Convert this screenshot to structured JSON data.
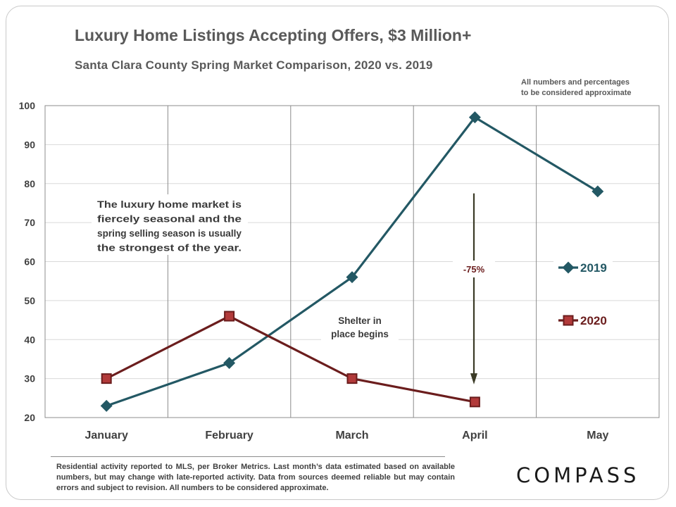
{
  "title": "Luxury Home Listings Accepting Offers, $3 Million+",
  "subtitle": "Santa Clara County Spring Market Comparison,  2020 vs. 2019",
  "note_lines": [
    "All numbers and percentages",
    "to be considered approximate"
  ],
  "annotations": {
    "seasonal_lines": [
      "The luxury home market is",
      "fiercely  seasonal  and  the",
      "spring selling season is usually",
      "the strongest of the year."
    ],
    "shelter_lines": [
      "Shelter in",
      "place  begins"
    ],
    "change_label": "-75%"
  },
  "footer": "Residential activity reported to MLS, per Broker Metrics. Last month’s data estimated based on available numbers, but may change with late-reported activity. Data from sources deemed reliable but may contain errors and subject to revision. All numbers to be considered approximate.",
  "logo": "COMPASS",
  "colors": {
    "s2019": "#235864",
    "s2020": "#6b1d1d",
    "s2020_fill": "#b23a3a",
    "arrow": "#3b3b27"
  },
  "chart_data": {
    "type": "line",
    "categories": [
      "January",
      "February",
      "March",
      "April",
      "May"
    ],
    "ylim": [
      20,
      100
    ],
    "yticks": [
      20,
      30,
      40,
      50,
      60,
      70,
      80,
      90,
      100
    ],
    "series": [
      {
        "name": "2019",
        "values": [
          23,
          34,
          56,
          97,
          78
        ]
      },
      {
        "name": "2020",
        "values": [
          30,
          46,
          30,
          24,
          null
        ]
      }
    ],
    "grid": "horizontal and vertical",
    "legend": "right"
  }
}
